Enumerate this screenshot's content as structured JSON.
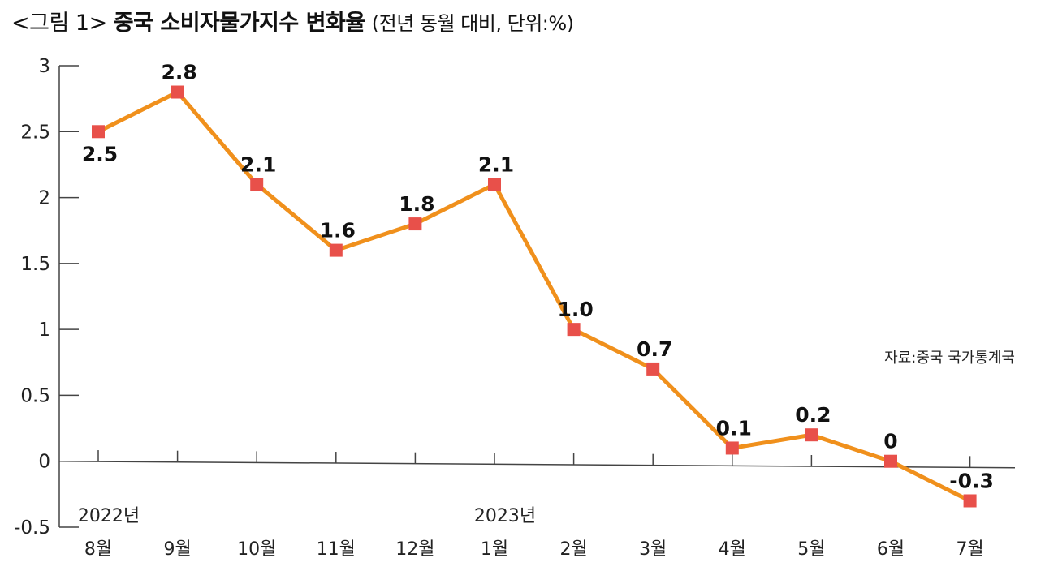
{
  "header": {
    "lead": "<그림 1>",
    "title": "중국 소비자물가지수 변화율",
    "subtitle": "(전년 동월 대비, 단위:%)"
  },
  "source_note": "자료:중국 국가통계국",
  "colors": {
    "line": "#f0901c",
    "marker": "#e8504a",
    "axis": "#444444"
  },
  "chart_data": {
    "type": "line",
    "title": "중국 소비자물가지수 변화율",
    "subtitle": "(전년 동월 대비, 단위:%)",
    "categories": [
      "8월",
      "9월",
      "10월",
      "11월",
      "12월",
      "1월",
      "2월",
      "3월",
      "4월",
      "5월",
      "6월",
      "7월"
    ],
    "year_labels": [
      {
        "category_index": 0,
        "label": "2022년"
      },
      {
        "category_index": 5,
        "label": "2023년"
      }
    ],
    "series": [
      {
        "name": "CPI 변화율",
        "values": [
          2.5,
          2.8,
          2.1,
          1.6,
          1.8,
          2.1,
          1.0,
          0.7,
          0.1,
          0.2,
          0,
          -0.3
        ],
        "labels": [
          "2.5",
          "2.8",
          "2.1",
          "1.6",
          "1.8",
          "2.1",
          "1.0",
          "0.7",
          "0.1",
          "0.2",
          "0",
          "-0.3"
        ]
      }
    ],
    "yticks": [
      "3",
      "2.5",
      "2",
      "1.5",
      "1",
      "0.5",
      "0",
      "-0.5"
    ],
    "ytick_values": [
      3,
      2.5,
      2,
      1.5,
      1,
      0.5,
      0,
      -0.5
    ],
    "ylim": [
      -0.5,
      3
    ],
    "xlabel": "",
    "ylabel": "",
    "grid": false
  }
}
